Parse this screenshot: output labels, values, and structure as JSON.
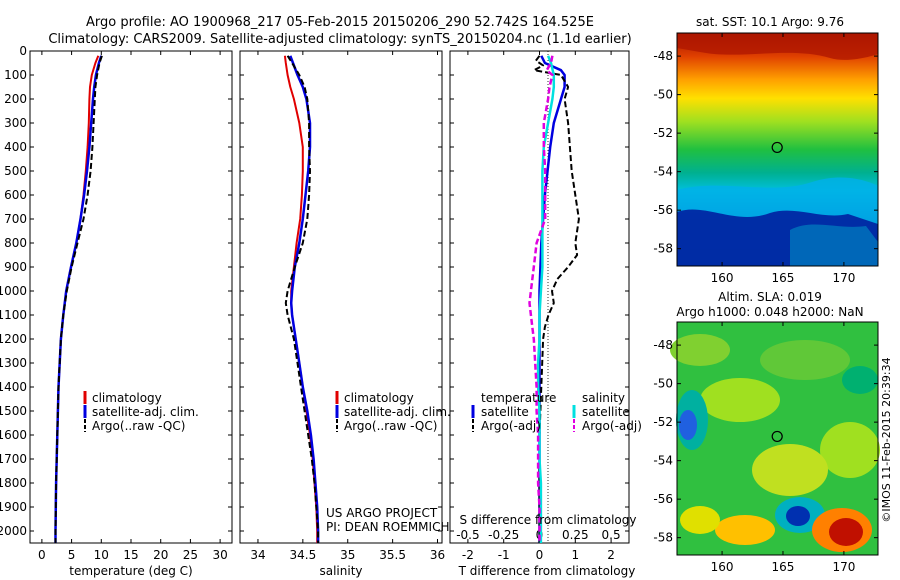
{
  "title": {
    "line1": "Argo profile: AO 1900968_217 05-Feb-2015 20150206_290 52.742S 164.525E",
    "line2": "Climatology: CARS2009. Satellite-adjusted climatology: synTS_20150204.nc (1.1d earlier)"
  },
  "depth_ticks": [
    "0",
    "100",
    "200",
    "300",
    "400",
    "500",
    "600",
    "700",
    "800",
    "900",
    "1000",
    "1100",
    "1200",
    "1300",
    "1400",
    "1500",
    "1600",
    "1700",
    "1800",
    "1900",
    "2000"
  ],
  "colors": {
    "climatology": "#e00000",
    "satellite": "#0000e0",
    "argo": "#000000",
    "sat_salinity": "#00e0e0",
    "argo_salinity": "#e000e0"
  },
  "chart_data": [
    {
      "type": "line",
      "xlabel": "temperature (deg C)",
      "x_ticks": [
        "0",
        "5",
        "10",
        "15",
        "20",
        "25",
        "30"
      ],
      "xlim": [
        -2,
        32
      ],
      "ylim": [
        0,
        2050
      ],
      "legend": [
        "climatology",
        "satellite-adj. clim.",
        "Argo(..raw -QC)"
      ],
      "series": [
        {
          "name": "climatology",
          "depth": [
            20,
            50,
            100,
            150,
            200,
            300,
            400,
            500,
            600,
            700,
            800,
            900,
            1000,
            1100,
            1200,
            1300,
            1400,
            1500,
            1600,
            1700,
            1800,
            1900,
            2000,
            2050
          ],
          "values": [
            9.5,
            9.0,
            8.4,
            8.1,
            8.0,
            7.9,
            7.7,
            7.4,
            7.0,
            6.5,
            5.8,
            4.9,
            4.1,
            3.6,
            3.2,
            3.0,
            2.8,
            2.7,
            2.6,
            2.5,
            2.4,
            2.35,
            2.3,
            2.3
          ]
        },
        {
          "name": "satellite-adj. clim.",
          "depth": [
            20,
            50,
            100,
            150,
            200,
            300,
            400,
            500,
            600,
            700,
            800,
            900,
            1000,
            1100,
            1200,
            1300,
            1400,
            1500,
            1600,
            1700,
            1800,
            1900,
            2000,
            2050
          ],
          "values": [
            10.0,
            9.6,
            9.1,
            8.8,
            8.6,
            8.3,
            8.0,
            7.6,
            7.1,
            6.5,
            5.8,
            4.9,
            4.1,
            3.6,
            3.2,
            3.0,
            2.8,
            2.7,
            2.6,
            2.5,
            2.4,
            2.35,
            2.3,
            2.3
          ]
        },
        {
          "name": "Argo(..raw -QC)",
          "depth": [
            20,
            50,
            100,
            150,
            200,
            300,
            400,
            500,
            600,
            700,
            800,
            900,
            1000,
            1100,
            1200,
            1300,
            1400,
            1500,
            1600,
            1700,
            1800,
            1900,
            2000,
            2050
          ],
          "values": [
            10.1,
            9.7,
            9.3,
            9.0,
            8.9,
            8.7,
            8.5,
            8.2,
            7.7,
            7.0,
            6.0,
            5.0,
            4.2,
            3.6,
            3.2,
            3.0,
            2.8,
            2.7,
            2.6,
            2.5,
            2.4,
            2.35,
            2.3,
            2.3
          ]
        }
      ]
    },
    {
      "type": "line",
      "xlabel": "salinity",
      "x_ticks": [
        "34",
        "34.5",
        "35",
        "35.5",
        "36"
      ],
      "xlim": [
        33.8,
        36.05
      ],
      "ylim": [
        0,
        2050
      ],
      "legend": [
        "climatology",
        "satellite-adj. clim.",
        "Argo(..raw -QC)"
      ],
      "series": [
        {
          "name": "climatology",
          "depth": [
            20,
            50,
            100,
            150,
            200,
            300,
            400,
            500,
            600,
            700,
            800,
            900,
            1000,
            1050,
            1100,
            1200,
            1300,
            1400,
            1500,
            1600,
            1700,
            1800,
            1900,
            2000,
            2050
          ],
          "values": [
            34.3,
            34.31,
            34.33,
            34.36,
            34.4,
            34.46,
            34.5,
            34.5,
            34.49,
            34.47,
            34.43,
            34.4,
            34.37,
            34.37,
            34.38,
            34.42,
            34.46,
            34.5,
            34.54,
            34.58,
            34.61,
            34.63,
            34.65,
            34.66,
            34.66
          ]
        },
        {
          "name": "satellite-adj. clim.",
          "depth": [
            20,
            50,
            100,
            150,
            200,
            300,
            400,
            500,
            600,
            700,
            800,
            900,
            1000,
            1050,
            1100,
            1200,
            1300,
            1400,
            1500,
            1600,
            1700,
            1800,
            1900,
            2000,
            2050
          ],
          "values": [
            34.36,
            34.39,
            34.44,
            34.5,
            34.54,
            34.58,
            34.58,
            34.56,
            34.53,
            34.5,
            34.46,
            34.41,
            34.38,
            34.37,
            34.38,
            34.42,
            34.46,
            34.5,
            34.55,
            34.59,
            34.62,
            34.64,
            34.66,
            34.67,
            34.67
          ]
        },
        {
          "name": "Argo(..raw -QC)",
          "depth": [
            20,
            50,
            100,
            150,
            200,
            300,
            400,
            500,
            600,
            700,
            800,
            900,
            1000,
            1050,
            1100,
            1200,
            1300,
            1400,
            1500,
            1600,
            1700,
            1800,
            1900,
            2000,
            2050
          ],
          "values": [
            34.33,
            34.38,
            34.46,
            34.52,
            34.55,
            34.57,
            34.57,
            34.58,
            34.57,
            34.55,
            34.5,
            34.41,
            34.33,
            34.31,
            34.33,
            34.4,
            34.44,
            34.48,
            34.52,
            34.56,
            34.6,
            34.63,
            34.65,
            34.67,
            34.67
          ]
        }
      ]
    },
    {
      "type": "line",
      "xlabel": "T difference from climatology",
      "x_ticks": [
        "-2",
        "-1",
        "0",
        "1",
        "2"
      ],
      "xlim": [
        -2.5,
        2.5
      ],
      "ylim": [
        0,
        2050
      ],
      "legend_temperature": [
        "temperature",
        "satellite",
        "Argo(-adj)"
      ],
      "legend_salinity": [
        "salinity",
        "satellite",
        "Argo(-adj)"
      ],
      "secondary_axis": {
        "label": "S difference from climatology",
        "ticks": [
          "-0.5",
          "-0.25",
          "0",
          "0.25",
          "0.5"
        ],
        "xlim": [
          -0.625,
          0.625
        ]
      },
      "series": [
        {
          "name": "temperature satellite",
          "depth": [
            20,
            50,
            80,
            100,
            150,
            200,
            300,
            400,
            600,
            800,
            1000,
            1200,
            1400,
            1600,
            1800,
            2000,
            2050
          ],
          "values": [
            0.05,
            0.15,
            0.6,
            0.7,
            0.7,
            0.6,
            0.4,
            0.3,
            0.15,
            0.05,
            0.0,
            0.0,
            0.0,
            0.0,
            0.0,
            0.0,
            0.0
          ]
        },
        {
          "name": "temperature Argo(-adj)",
          "depth": [
            20,
            40,
            60,
            80,
            100,
            150,
            200,
            300,
            400,
            500,
            600,
            700,
            800,
            850,
            900,
            950,
            1000,
            1050,
            1100,
            1150,
            1200,
            1400,
            1600,
            1800,
            2000,
            2050
          ],
          "values": [
            0.0,
            -0.1,
            0.1,
            -0.15,
            0.6,
            0.8,
            0.7,
            0.8,
            0.85,
            0.9,
            1.0,
            1.1,
            1.0,
            1.05,
            0.8,
            0.5,
            0.35,
            0.4,
            0.25,
            0.15,
            0.1,
            0.05,
            0.0,
            0.0,
            0.0,
            0.0
          ]
        },
        {
          "name": "salinity satellite",
          "depth": [
            20,
            50,
            100,
            150,
            200,
            300,
            400,
            500,
            600,
            700,
            800,
            900,
            1000,
            1100,
            1200,
            1300,
            1400,
            1500,
            1600,
            1700,
            1800,
            1900,
            2000,
            2050
          ],
          "values": [
            0.06,
            0.08,
            0.1,
            0.1,
            0.09,
            0.06,
            0.03,
            0.02,
            0.02,
            0.02,
            0.02,
            0.02,
            0.01,
            0.0,
            0.0,
            -0.01,
            -0.01,
            0.0,
            0.0,
            0.0,
            0.01,
            0.01,
            0.01,
            0.01
          ]
        },
        {
          "name": "salinity Argo(-adj)",
          "depth": [
            20,
            50,
            80,
            100,
            150,
            200,
            300,
            400,
            500,
            600,
            700,
            800,
            900,
            1000,
            1050,
            1100,
            1150,
            1200,
            1300,
            1400,
            1500,
            1600,
            1700,
            1800,
            1900,
            2000,
            2050
          ],
          "values": [
            0.09,
            0.08,
            0.05,
            0.09,
            0.07,
            0.06,
            0.03,
            0.03,
            0.04,
            0.04,
            0.04,
            -0.02,
            -0.04,
            -0.06,
            -0.07,
            -0.06,
            -0.05,
            -0.04,
            -0.03,
            -0.02,
            -0.02,
            -0.01,
            -0.01,
            -0.01,
            0.0,
            0.0,
            0.0
          ]
        }
      ]
    },
    {
      "type": "heatmap",
      "title": "sat. SST: 10.1  Argo: 9.76",
      "x_ticks": [
        "160",
        "165",
        "170"
      ],
      "y_ticks": [
        "-48",
        "-50",
        "-52",
        "-54",
        "-56",
        "-58"
      ],
      "xlim": [
        156.3,
        172.8
      ],
      "ylim": [
        -58.9,
        -46.8
      ],
      "marker": {
        "lon": 164.525,
        "lat": -52.742
      }
    },
    {
      "type": "heatmap",
      "title_line1": "Altim. SLA: 0.019",
      "title_line2": "Argo h1000: 0.048 h2000: NaN",
      "x_ticks": [
        "160",
        "165",
        "170"
      ],
      "y_ticks": [
        "-48",
        "-50",
        "-52",
        "-54",
        "-56",
        "-58"
      ],
      "xlim": [
        156.3,
        172.8
      ],
      "ylim": [
        -58.9,
        -46.8
      ],
      "marker": {
        "lon": 164.525,
        "lat": -52.742
      }
    }
  ],
  "credits": {
    "line1": "US ARGO PROJECT",
    "line2": "PI: DEAN ROEMMICH"
  },
  "timestamp": "©IMOS 11-Feb-2015 20:39:34"
}
